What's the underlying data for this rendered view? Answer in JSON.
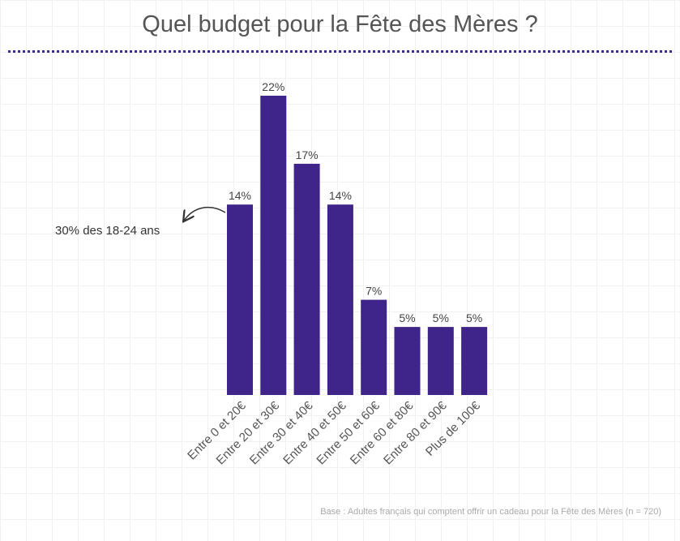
{
  "title": "Quel budget pour la Fête des Mères ?",
  "annotation": "30% des 18-24 ans",
  "footnote": "Base : Adultes français qui comptent offrir un cadeau pour la Fête des Mères (n = 720)",
  "colors": {
    "bar": "#3f2589",
    "divider": "#3d2a8c"
  },
  "chart_data": {
    "type": "bar",
    "title": "Quel budget pour la Fête des Mères ?",
    "xlabel": "",
    "ylabel": "",
    "ylim": [
      0,
      22
    ],
    "grid": false,
    "categories": [
      "Entre 0 et 20€",
      "Entre 20 et 30€",
      "Entre 30 et 40€",
      "Entre 40 et 50€",
      "Entre 50 et 60€",
      "Entre 60 et 80€",
      "Entre 80 et 90€",
      "Plus de 100€"
    ],
    "values": [
      14,
      22,
      17,
      14,
      7,
      5,
      5,
      5
    ],
    "value_labels": [
      "14%",
      "22%",
      "17%",
      "14%",
      "7%",
      "5%",
      "5%",
      "5%"
    ],
    "annotations": [
      {
        "category": "Entre 0 et 20€",
        "text": "30% des 18-24 ans"
      }
    ]
  }
}
